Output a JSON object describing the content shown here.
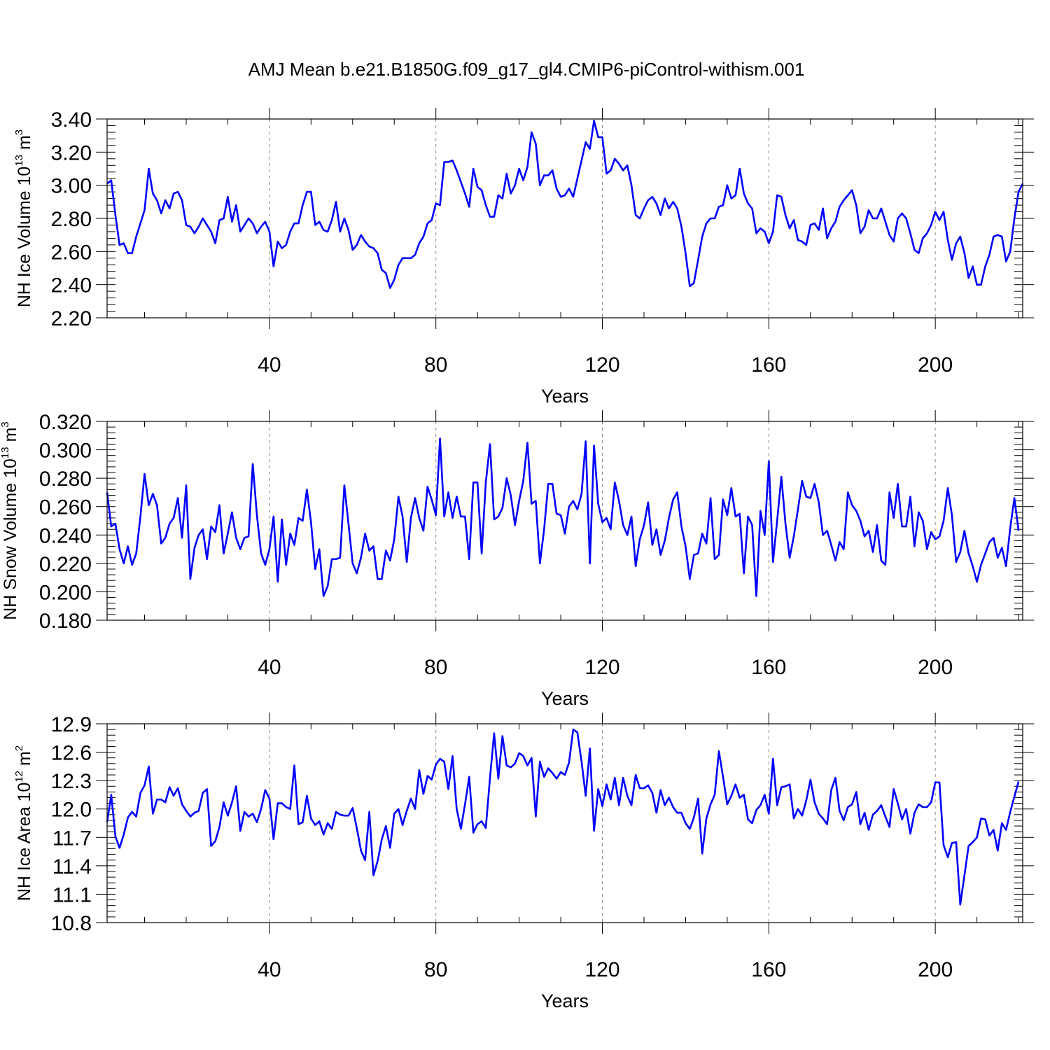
{
  "chart_data": {
    "type": "line",
    "title": "AMJ Mean b.e21.B1850G.f09_g17_gl4.CMIP6-piControl-withism.001",
    "x_start": 1,
    "x_step": 1,
    "xlim": [
      1,
      221
    ],
    "xticks": [
      40,
      80,
      120,
      160,
      200
    ],
    "xlabel": "Years",
    "line_color": "#0000ff",
    "grid": "dashed vertical lines at x ticks",
    "panels": [
      {
        "ylabel_main": "NH Ice Volume 10",
        "ylabel_exp": "13",
        "ylabel_unit": " m",
        "ylabel_unit_exp": "3",
        "ylim": [
          2.2,
          3.4
        ],
        "ymajor": [
          2.2,
          2.4,
          2.6,
          2.8,
          3.0,
          3.2,
          3.4
        ],
        "ytick_labels": [
          "2.20",
          "2.40",
          "2.60",
          "2.80",
          "3.00",
          "3.20",
          "3.40"
        ],
        "yminor_step": 0.04,
        "values": [
          3.01,
          3.03,
          2.82,
          2.64,
          2.65,
          2.59,
          2.59,
          2.69,
          2.77,
          2.85,
          3.1,
          2.95,
          2.91,
          2.83,
          2.91,
          2.86,
          2.95,
          2.96,
          2.91,
          2.76,
          2.75,
          2.71,
          2.75,
          2.8,
          2.76,
          2.72,
          2.65,
          2.79,
          2.8,
          2.93,
          2.78,
          2.88,
          2.72,
          2.76,
          2.8,
          2.77,
          2.71,
          2.75,
          2.78,
          2.72,
          2.51,
          2.66,
          2.62,
          2.64,
          2.72,
          2.77,
          2.77,
          2.88,
          2.96,
          2.96,
          2.76,
          2.78,
          2.73,
          2.72,
          2.79,
          2.9,
          2.72,
          2.8,
          2.73,
          2.61,
          2.64,
          2.7,
          2.66,
          2.63,
          2.62,
          2.59,
          2.49,
          2.47,
          2.38,
          2.43,
          2.52,
          2.56,
          2.56,
          2.56,
          2.58,
          2.65,
          2.69,
          2.77,
          2.79,
          2.89,
          2.88,
          3.14,
          3.14,
          3.15,
          3.09,
          3.02,
          2.95,
          2.87,
          3.1,
          2.99,
          2.97,
          2.88,
          2.81,
          2.81,
          2.94,
          2.92,
          3.07,
          2.95,
          3.0,
          3.1,
          3.03,
          3.11,
          3.32,
          3.25,
          3.0,
          3.06,
          3.06,
          3.09,
          2.98,
          2.93,
          2.94,
          2.98,
          2.93,
          3.04,
          3.15,
          3.26,
          3.22,
          3.39,
          3.29,
          3.29,
          3.07,
          3.09,
          3.16,
          3.13,
          3.09,
          3.12,
          3.0,
          2.82,
          2.8,
          2.86,
          2.91,
          2.93,
          2.89,
          2.82,
          2.92,
          2.86,
          2.9,
          2.86,
          2.75,
          2.59,
          2.39,
          2.41,
          2.55,
          2.69,
          2.77,
          2.8,
          2.8,
          2.87,
          2.88,
          3.0,
          2.92,
          2.94,
          3.1,
          2.95,
          2.89,
          2.86,
          2.71,
          2.74,
          2.72,
          2.65,
          2.72,
          2.94,
          2.93,
          2.82,
          2.74,
          2.79,
          2.67,
          2.66,
          2.64,
          2.76,
          2.77,
          2.73,
          2.86,
          2.68,
          2.74,
          2.78,
          2.87,
          2.91,
          2.94,
          2.97,
          2.88,
          2.71,
          2.75,
          2.85,
          2.8,
          2.8,
          2.86,
          2.78,
          2.7,
          2.66,
          2.8,
          2.83,
          2.8,
          2.71,
          2.61,
          2.59,
          2.68,
          2.71,
          2.76,
          2.84,
          2.79,
          2.84,
          2.67,
          2.55,
          2.65,
          2.69,
          2.59,
          2.44,
          2.51,
          2.4,
          2.4,
          2.51,
          2.58,
          2.69,
          2.7,
          2.69,
          2.54,
          2.6,
          2.8,
          2.96,
          3.01
        ]
      },
      {
        "ylabel_main": "NH Snow Volume 10",
        "ylabel_exp": "13",
        "ylabel_unit": " m",
        "ylabel_unit_exp": "3",
        "ylim": [
          0.18,
          0.32
        ],
        "ymajor": [
          0.18,
          0.2,
          0.22,
          0.24,
          0.26,
          0.28,
          0.3,
          0.32
        ],
        "ytick_labels": [
          "0.180",
          "0.200",
          "0.220",
          "0.240",
          "0.260",
          "0.280",
          "0.300",
          "0.320"
        ],
        "yminor_step": 0.004,
        "values": [
          0.27,
          0.246,
          0.248,
          0.23,
          0.22,
          0.232,
          0.219,
          0.227,
          0.253,
          0.283,
          0.261,
          0.269,
          0.261,
          0.234,
          0.238,
          0.248,
          0.252,
          0.266,
          0.238,
          0.275,
          0.209,
          0.231,
          0.24,
          0.244,
          0.223,
          0.246,
          0.242,
          0.261,
          0.227,
          0.241,
          0.256,
          0.238,
          0.23,
          0.238,
          0.239,
          0.29,
          0.254,
          0.227,
          0.219,
          0.23,
          0.253,
          0.207,
          0.251,
          0.219,
          0.241,
          0.233,
          0.252,
          0.25,
          0.272,
          0.249,
          0.216,
          0.23,
          0.197,
          0.204,
          0.223,
          0.223,
          0.224,
          0.275,
          0.248,
          0.22,
          0.213,
          0.224,
          0.241,
          0.229,
          0.232,
          0.209,
          0.209,
          0.229,
          0.222,
          0.237,
          0.267,
          0.253,
          0.221,
          0.252,
          0.266,
          0.252,
          0.243,
          0.274,
          0.265,
          0.254,
          0.308,
          0.253,
          0.27,
          0.252,
          0.267,
          0.253,
          0.253,
          0.223,
          0.277,
          0.277,
          0.227,
          0.277,
          0.304,
          0.251,
          0.253,
          0.259,
          0.28,
          0.268,
          0.247,
          0.264,
          0.278,
          0.305,
          0.262,
          0.264,
          0.22,
          0.244,
          0.276,
          0.276,
          0.255,
          0.254,
          0.241,
          0.26,
          0.264,
          0.258,
          0.269,
          0.306,
          0.22,
          0.303,
          0.262,
          0.249,
          0.252,
          0.244,
          0.277,
          0.264,
          0.247,
          0.24,
          0.253,
          0.218,
          0.237,
          0.247,
          0.263,
          0.233,
          0.244,
          0.226,
          0.236,
          0.252,
          0.265,
          0.27,
          0.246,
          0.232,
          0.209,
          0.226,
          0.227,
          0.241,
          0.234,
          0.266,
          0.223,
          0.226,
          0.265,
          0.254,
          0.273,
          0.253,
          0.255,
          0.213,
          0.253,
          0.247,
          0.197,
          0.257,
          0.24,
          0.292,
          0.221,
          0.25,
          0.281,
          0.248,
          0.224,
          0.239,
          0.258,
          0.278,
          0.267,
          0.266,
          0.276,
          0.263,
          0.24,
          0.243,
          0.233,
          0.222,
          0.235,
          0.23,
          0.27,
          0.261,
          0.257,
          0.25,
          0.239,
          0.243,
          0.228,
          0.247,
          0.222,
          0.219,
          0.27,
          0.252,
          0.276,
          0.246,
          0.246,
          0.267,
          0.232,
          0.256,
          0.25,
          0.23,
          0.242,
          0.237,
          0.239,
          0.25,
          0.273,
          0.254,
          0.221,
          0.228,
          0.243,
          0.227,
          0.218,
          0.207,
          0.219,
          0.227,
          0.235,
          0.238,
          0.224,
          0.231,
          0.218,
          0.245,
          0.266,
          0.243
        ]
      },
      {
        "ylabel_main": "NH Ice Area 10",
        "ylabel_exp": "12",
        "ylabel_unit": " m",
        "ylabel_unit_exp": "2",
        "ylim": [
          10.8,
          12.9
        ],
        "ymajor": [
          10.8,
          11.1,
          11.4,
          11.7,
          12.0,
          12.3,
          12.6,
          12.9
        ],
        "ytick_labels": [
          "10.8",
          "11.1",
          "11.4",
          "11.7",
          "12.0",
          "12.3",
          "12.6",
          "12.9"
        ],
        "yminor_step": 0.06,
        "values": [
          11.86,
          12.15,
          11.71,
          11.59,
          11.73,
          11.91,
          11.97,
          11.92,
          12.17,
          12.25,
          12.45,
          11.95,
          12.1,
          12.1,
          12.07,
          12.23,
          12.14,
          12.22,
          12.05,
          11.98,
          11.92,
          11.96,
          11.98,
          12.17,
          12.21,
          11.61,
          11.66,
          11.81,
          12.07,
          11.93,
          12.07,
          12.24,
          11.77,
          11.97,
          11.92,
          11.95,
          11.86,
          12.0,
          12.2,
          12.11,
          11.68,
          12.06,
          12.06,
          12.02,
          12.0,
          12.46,
          11.84,
          11.86,
          12.14,
          11.9,
          11.83,
          11.87,
          11.73,
          11.85,
          11.79,
          11.97,
          11.94,
          11.93,
          11.93,
          12.01,
          11.8,
          11.56,
          11.46,
          11.97,
          11.3,
          11.45,
          11.68,
          11.82,
          11.59,
          11.95,
          12.0,
          11.83,
          11.98,
          12.11,
          12.0,
          12.41,
          12.16,
          12.35,
          12.31,
          12.47,
          12.53,
          12.5,
          12.21,
          12.56,
          12.0,
          11.79,
          12.05,
          12.34,
          11.75,
          11.84,
          11.87,
          11.8,
          12.33,
          12.8,
          12.32,
          12.77,
          12.46,
          12.44,
          12.48,
          12.59,
          12.56,
          12.46,
          12.54,
          11.92,
          12.5,
          12.34,
          12.43,
          12.38,
          12.32,
          12.39,
          12.36,
          12.49,
          12.84,
          12.81,
          12.5,
          12.14,
          12.64,
          11.77,
          12.21,
          12.03,
          12.26,
          12.1,
          12.33,
          12.04,
          12.33,
          12.14,
          12.04,
          12.36,
          12.22,
          12.22,
          12.25,
          12.17,
          11.96,
          12.2,
          12.04,
          12.12,
          12.02,
          11.96,
          11.96,
          11.85,
          11.79,
          11.91,
          12.11,
          11.53,
          11.9,
          12.05,
          12.15,
          12.61,
          12.34,
          12.05,
          12.14,
          12.26,
          12.12,
          12.15,
          11.89,
          11.85,
          11.99,
          12.04,
          12.15,
          11.95,
          12.53,
          12.04,
          12.23,
          12.24,
          12.26,
          11.9,
          12.0,
          11.93,
          12.09,
          12.31,
          12.07,
          11.95,
          11.9,
          11.84,
          12.2,
          12.33,
          11.98,
          11.88,
          12.02,
          12.05,
          12.18,
          11.84,
          11.96,
          11.78,
          11.94,
          11.98,
          12.04,
          11.92,
          11.81,
          12.21,
          12.06,
          11.89,
          12.0,
          11.74,
          11.96,
          12.05,
          12.02,
          12.02,
          12.07,
          12.28,
          12.28,
          11.62,
          11.49,
          11.64,
          11.65,
          10.99,
          11.3,
          11.61,
          11.65,
          11.7,
          11.9,
          11.89,
          11.72,
          11.78,
          11.56,
          11.85,
          11.78,
          11.97,
          12.13,
          12.29
        ]
      }
    ]
  }
}
